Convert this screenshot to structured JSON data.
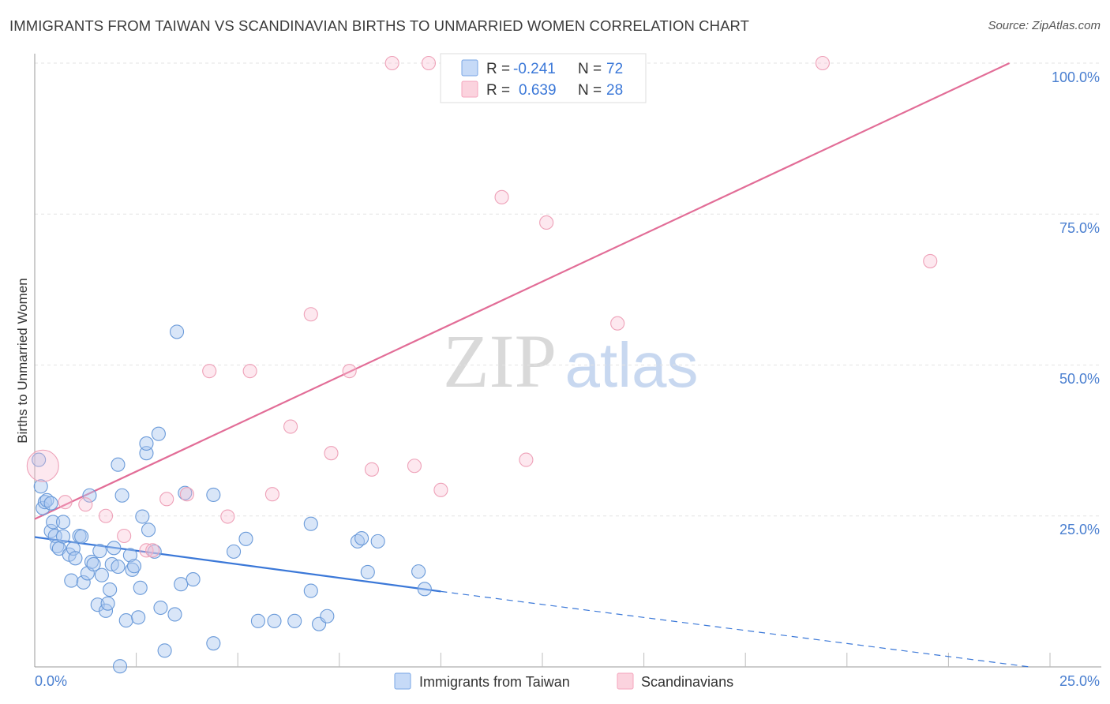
{
  "header": {
    "title": "IMMIGRANTS FROM TAIWAN VS SCANDINAVIAN BIRTHS TO UNMARRIED WOMEN CORRELATION CHART",
    "source": "Source: ZipAtlas.com"
  },
  "watermark": {
    "zip": "ZIP",
    "atlas": "atlas"
  },
  "stats": [
    {
      "r_label": "R =",
      "r_value": "-0.241",
      "n_label": "N =",
      "n_value": "72",
      "color": "#7aa7e6"
    },
    {
      "r_label": "R =",
      "r_value": "0.639",
      "n_label": "N =",
      "n_value": "28",
      "color": "#f4a6bd"
    }
  ],
  "legend": [
    {
      "label": "Immigrants from Taiwan",
      "color": "#7aa7e6"
    },
    {
      "label": "Scandinavians",
      "color": "#f4a6bd"
    }
  ],
  "chart_data": {
    "type": "scatter",
    "xlabel": "",
    "ylabel": "Births to Unmarried Women",
    "x_tick_labels": [
      "0.0%",
      "25.0%"
    ],
    "y_tick_labels": [
      "100.0%",
      "75.0%",
      "50.0%",
      "25.0%"
    ],
    "xlim": [
      0,
      25
    ],
    "ylim": [
      0,
      100
    ],
    "grid": true,
    "legend_position": "bottom-center",
    "series": [
      {
        "name": "Immigrants from Taiwan",
        "color": "#7aa7e6",
        "trend": {
          "x0": 0,
          "y0": 21.5,
          "x1": 10.0,
          "y1": 12.5,
          "dashed_to_x": 24.5,
          "dashed_to_y": 0
        },
        "points": [
          [
            0.1,
            34.3
          ],
          [
            0.15,
            29.9
          ],
          [
            0.2,
            26.3
          ],
          [
            0.25,
            27.3
          ],
          [
            0.3,
            27.6
          ],
          [
            0.4,
            22.5
          ],
          [
            0.4,
            27.1
          ],
          [
            0.45,
            24.0
          ],
          [
            0.5,
            21.7
          ],
          [
            0.55,
            20.0
          ],
          [
            0.6,
            19.6
          ],
          [
            0.7,
            24.0
          ],
          [
            0.7,
            21.6
          ],
          [
            0.85,
            18.6
          ],
          [
            0.9,
            14.3
          ],
          [
            0.95,
            19.6
          ],
          [
            1.0,
            18.0
          ],
          [
            1.1,
            21.7
          ],
          [
            1.15,
            21.6
          ],
          [
            1.2,
            14.0
          ],
          [
            1.3,
            15.5
          ],
          [
            1.35,
            28.4
          ],
          [
            1.4,
            17.4
          ],
          [
            1.45,
            17.0
          ],
          [
            1.55,
            10.3
          ],
          [
            1.6,
            19.2
          ],
          [
            1.65,
            15.2
          ],
          [
            1.75,
            9.3
          ],
          [
            1.8,
            10.5
          ],
          [
            1.85,
            12.8
          ],
          [
            1.9,
            17.0
          ],
          [
            1.95,
            19.7
          ],
          [
            2.05,
            16.6
          ],
          [
            2.05,
            33.5
          ],
          [
            2.15,
            28.4
          ],
          [
            2.25,
            7.7
          ],
          [
            2.35,
            18.5
          ],
          [
            2.4,
            16.1
          ],
          [
            2.45,
            16.7
          ],
          [
            2.55,
            8.2
          ],
          [
            2.6,
            13.1
          ],
          [
            2.65,
            24.9
          ],
          [
            2.75,
            35.4
          ],
          [
            2.75,
            37.0
          ],
          [
            2.8,
            22.7
          ],
          [
            2.95,
            19.1
          ],
          [
            3.05,
            38.6
          ],
          [
            3.1,
            9.8
          ],
          [
            3.2,
            2.7
          ],
          [
            3.45,
            8.7
          ],
          [
            3.5,
            55.5
          ],
          [
            3.6,
            13.7
          ],
          [
            3.7,
            28.8
          ],
          [
            3.9,
            14.5
          ],
          [
            4.4,
            28.5
          ],
          [
            4.4,
            3.9
          ],
          [
            4.9,
            19.1
          ],
          [
            5.2,
            21.2
          ],
          [
            5.5,
            7.6
          ],
          [
            5.9,
            7.6
          ],
          [
            6.4,
            7.6
          ],
          [
            6.8,
            23.7
          ],
          [
            6.8,
            12.6
          ],
          [
            7.0,
            7.1
          ],
          [
            7.2,
            8.4
          ],
          [
            7.95,
            20.8
          ],
          [
            8.05,
            21.3
          ],
          [
            8.2,
            15.7
          ],
          [
            8.45,
            20.8
          ],
          [
            9.45,
            15.8
          ],
          [
            9.6,
            12.9
          ],
          [
            2.1,
            0.1
          ]
        ]
      },
      {
        "name": "Scandinavians",
        "color": "#f4a6bd",
        "trend": {
          "x0": 0,
          "y0": 24.5,
          "x1": 24.0,
          "y1": 100.0
        },
        "points": [
          [
            0.2,
            33.3
          ],
          [
            0.75,
            27.3
          ],
          [
            1.25,
            26.9
          ],
          [
            1.75,
            25.0
          ],
          [
            2.2,
            21.7
          ],
          [
            2.75,
            19.3
          ],
          [
            3.25,
            27.8
          ],
          [
            3.75,
            28.6
          ],
          [
            4.3,
            49.0
          ],
          [
            4.75,
            24.9
          ],
          [
            5.3,
            49.0
          ],
          [
            5.85,
            28.6
          ],
          [
            6.3,
            39.8
          ],
          [
            6.8,
            58.4
          ],
          [
            7.3,
            35.4
          ],
          [
            7.75,
            49.0
          ],
          [
            8.3,
            32.7
          ],
          [
            8.8,
            100.0
          ],
          [
            9.35,
            33.3
          ],
          [
            9.7,
            100.0
          ],
          [
            10.0,
            29.3
          ],
          [
            11.5,
            77.8
          ],
          [
            12.1,
            34.3
          ],
          [
            12.6,
            73.6
          ],
          [
            14.35,
            56.9
          ],
          [
            19.4,
            100.0
          ],
          [
            22.05,
            67.2
          ],
          [
            2.9,
            19.3
          ]
        ]
      }
    ]
  }
}
